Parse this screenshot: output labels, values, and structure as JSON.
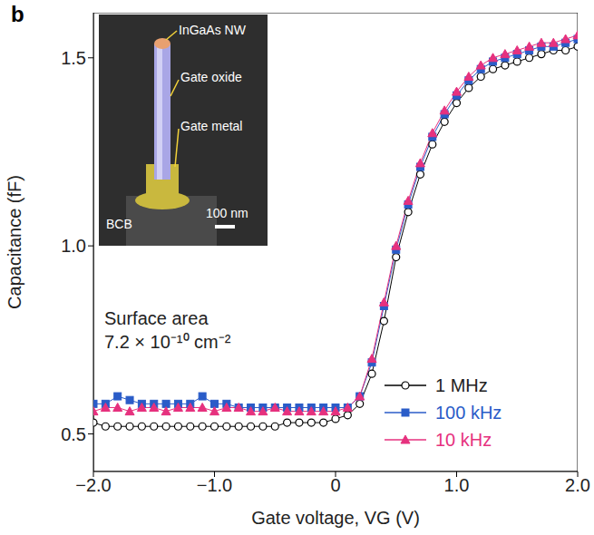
{
  "chart_data": {
    "type": "line",
    "panel_label": "b",
    "x_label": "Gate voltage, VG (V)",
    "y_label": "Capacitance (fF)",
    "x": [
      -2.0,
      -1.9,
      -1.8,
      -1.7,
      -1.6,
      -1.5,
      -1.4,
      -1.3,
      -1.2,
      -1.1,
      -1.0,
      -0.9,
      -0.8,
      -0.7,
      -0.6,
      -0.5,
      -0.4,
      -0.3,
      -0.2,
      -0.1,
      0.0,
      0.1,
      0.2,
      0.3,
      0.4,
      0.5,
      0.6,
      0.7,
      0.8,
      0.9,
      1.0,
      1.1,
      1.2,
      1.3,
      1.4,
      1.5,
      1.6,
      1.7,
      1.8,
      1.9,
      2.0
    ],
    "series": [
      {
        "name": "1 MHz",
        "color": "#000000",
        "marker": "circle-open",
        "line_style": "solid",
        "values": [
          0.53,
          0.52,
          0.52,
          0.52,
          0.52,
          0.52,
          0.52,
          0.52,
          0.52,
          0.52,
          0.52,
          0.52,
          0.52,
          0.52,
          0.52,
          0.52,
          0.53,
          0.53,
          0.53,
          0.53,
          0.54,
          0.55,
          0.58,
          0.66,
          0.8,
          0.97,
          1.09,
          1.19,
          1.27,
          1.33,
          1.38,
          1.42,
          1.45,
          1.47,
          1.48,
          1.49,
          1.5,
          1.51,
          1.52,
          1.52,
          1.53
        ]
      },
      {
        "name": "100 kHz",
        "color": "#2a5cc8",
        "marker": "square",
        "line_style": "solid",
        "values": [
          0.58,
          0.58,
          0.6,
          0.59,
          0.58,
          0.58,
          0.58,
          0.58,
          0.58,
          0.6,
          0.58,
          0.58,
          0.57,
          0.57,
          0.57,
          0.57,
          0.57,
          0.57,
          0.57,
          0.57,
          0.57,
          0.57,
          0.6,
          0.69,
          0.84,
          0.99,
          1.11,
          1.21,
          1.29,
          1.35,
          1.4,
          1.44,
          1.47,
          1.49,
          1.5,
          1.51,
          1.52,
          1.53,
          1.53,
          1.54,
          1.55
        ]
      },
      {
        "name": "10 kHz",
        "color": "#e6317e",
        "marker": "triangle",
        "line_style": "solid",
        "values": [
          0.56,
          0.57,
          0.57,
          0.56,
          0.57,
          0.57,
          0.56,
          0.57,
          0.57,
          0.57,
          0.56,
          0.57,
          0.57,
          0.56,
          0.56,
          0.57,
          0.56,
          0.56,
          0.56,
          0.56,
          0.56,
          0.57,
          0.6,
          0.7,
          0.85,
          1.0,
          1.12,
          1.22,
          1.3,
          1.36,
          1.41,
          1.45,
          1.48,
          1.5,
          1.51,
          1.52,
          1.53,
          1.54,
          1.54,
          1.55,
          1.56
        ]
      }
    ],
    "xlim": [
      -2,
      2
    ],
    "xticks": [
      {
        "value": -2,
        "label": "−2.0"
      },
      {
        "value": -1,
        "label": "−1.0"
      },
      0,
      {
        "value": 1,
        "label": "1.0"
      },
      {
        "value": 2,
        "label": "2.0"
      }
    ],
    "ylim": [
      0.4,
      1.62
    ],
    "yticks": [
      0.5,
      {
        "value": 1,
        "label": "1.0"
      },
      1.5
    ],
    "grid": false,
    "legend": "lower right",
    "annotations": [
      "Surface area",
      "7.2 × 10⁻¹⁰ cm⁻²"
    ],
    "inset": {
      "labels": [
        "InGaAs NW",
        "Gate oxide",
        "Gate metal",
        "BCB"
      ],
      "scale_bar": "100 nm"
    }
  }
}
